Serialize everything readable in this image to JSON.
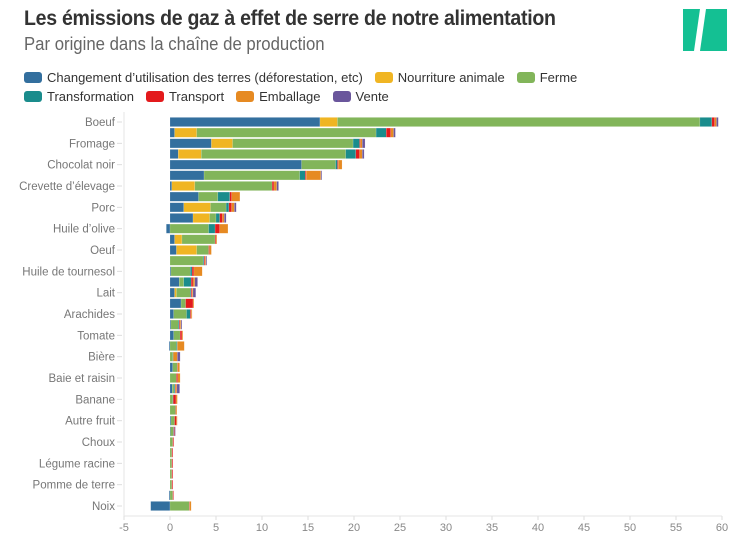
{
  "header": {
    "title": "Les émissions de gaz à effet de serre de notre alimentation",
    "subtitle": "Par origine dans la chaîne de production"
  },
  "logo": {
    "name": "brand-logo",
    "color": "#14c093"
  },
  "chart_data": {
    "type": "bar",
    "orientation": "horizontal",
    "stacked": true,
    "title": "Les émissions de gaz à effet de serre de notre alimentation",
    "subtitle": "Par origine dans la chaîne de production",
    "xlim": [
      -5,
      60
    ],
    "xticks": [
      -5,
      0,
      5,
      10,
      15,
      20,
      25,
      30,
      35,
      40,
      45,
      50,
      55,
      60
    ],
    "grid": false,
    "legend_position": "top",
    "series": [
      {
        "name": "Changement d’utilisation des terres (déforestation, etc)",
        "color": "#336f9e"
      },
      {
        "name": "Nourriture animale",
        "color": "#f0b523"
      },
      {
        "name": "Ferme",
        "color": "#82b55a"
      },
      {
        "name": "Transformation",
        "color": "#1a8c8c"
      },
      {
        "name": "Transport",
        "color": "#e31a1c"
      },
      {
        "name": "Emballage",
        "color": "#e68a22"
      },
      {
        "name": "Vente",
        "color": "#6a569c"
      }
    ],
    "rows": [
      {
        "label": "Boeuf",
        "values": [
          16.3,
          1.9,
          39.4,
          1.3,
          0.3,
          0.2,
          0.2
        ]
      },
      {
        "label": "",
        "values": [
          0.5,
          2.4,
          19.5,
          1.1,
          0.5,
          0.3,
          0.2
        ]
      },
      {
        "label": "Fromage",
        "values": [
          4.5,
          2.3,
          13.1,
          0.7,
          0.1,
          0.2,
          0.3
        ]
      },
      {
        "label": "",
        "values": [
          0.9,
          2.5,
          15.7,
          1.1,
          0.4,
          0.3,
          0.2
        ]
      },
      {
        "label": "Chocolat noir",
        "values": [
          14.3,
          0,
          3.7,
          0.2,
          0.1,
          0.4,
          0
        ]
      },
      {
        "label": "",
        "values": [
          3.7,
          0,
          10.4,
          0.6,
          0.1,
          1.6,
          0.1
        ]
      },
      {
        "label": "Crevette d’élevage",
        "values": [
          0.2,
          2.5,
          8.4,
          0,
          0.2,
          0.3,
          0.2
        ]
      },
      {
        "label": "",
        "values": [
          3.1,
          0,
          2.1,
          1.3,
          0.2,
          0.9,
          0
        ]
      },
      {
        "label": "Porc",
        "values": [
          1.5,
          2.9,
          1.7,
          0.3,
          0.3,
          0.3,
          0.2
        ]
      },
      {
        "label": "",
        "values": [
          2.5,
          1.8,
          0.7,
          0.4,
          0.3,
          0.2,
          0.2
        ]
      },
      {
        "label": "Huile d’olive",
        "values": [
          -0.4,
          0,
          4.2,
          0.7,
          0.5,
          0.9,
          0
        ]
      },
      {
        "label": "",
        "values": [
          0.5,
          0.8,
          3.6,
          0,
          0.1,
          0.1,
          0
        ]
      },
      {
        "label": "Oeuf",
        "values": [
          0.7,
          2.2,
          1.3,
          0,
          0.1,
          0.2,
          0
        ]
      },
      {
        "label": "",
        "values": [
          0,
          0,
          3.6,
          0.1,
          0.1,
          0.1,
          0.1
        ]
      },
      {
        "label": "Huile de tournesol",
        "values": [
          0.1,
          0,
          2.1,
          0.2,
          0.2,
          0.9,
          0
        ]
      },
      {
        "label": "",
        "values": [
          1.0,
          0,
          0.5,
          0.8,
          0.2,
          0.2,
          0.3
        ]
      },
      {
        "label": "Lait",
        "values": [
          0.5,
          0.2,
          1.5,
          0.1,
          0.1,
          0.1,
          0.3
        ]
      },
      {
        "label": "",
        "values": [
          1.2,
          0,
          0.5,
          0,
          0.8,
          0.1,
          0
        ]
      },
      {
        "label": "Arachides",
        "values": [
          0.4,
          0,
          1.4,
          0.4,
          0.1,
          0.1,
          0
        ]
      },
      {
        "label": "",
        "values": [
          0.1,
          0,
          0.8,
          0.1,
          0.1,
          0.1,
          0.1
        ]
      },
      {
        "label": "Tomate",
        "values": [
          0.4,
          0,
          0.7,
          0,
          0.2,
          0.1,
          0
        ]
      },
      {
        "label": "",
        "values": [
          -0.1,
          0,
          0.7,
          0.1,
          0,
          0.75,
          0
        ]
      },
      {
        "label": "Bière",
        "values": [
          0,
          0,
          0.3,
          0.05,
          0,
          0.45,
          0.3
        ]
      },
      {
        "label": "",
        "values": [
          0.3,
          0,
          0.5,
          0,
          0.05,
          0.2,
          0
        ]
      },
      {
        "label": "Baie et raisin",
        "values": [
          0,
          0,
          0.7,
          0,
          0.15,
          0.25,
          0
        ]
      },
      {
        "label": "",
        "values": [
          0.25,
          0,
          0.2,
          0.1,
          0.05,
          0.15,
          0.3
        ]
      },
      {
        "label": "Banane",
        "values": [
          0,
          0,
          0.3,
          0.05,
          0.3,
          0.15,
          0
        ]
      },
      {
        "label": "",
        "values": [
          0,
          0,
          0.6,
          0,
          0.05,
          0.1,
          0
        ]
      },
      {
        "label": "Autre fruit",
        "values": [
          0.1,
          0,
          0.4,
          0,
          0.2,
          0.05,
          0
        ]
      },
      {
        "label": "",
        "values": [
          0.05,
          0,
          0.3,
          0.05,
          0.1,
          0,
          0.05
        ]
      },
      {
        "label": "Choux",
        "values": [
          0,
          0,
          0.3,
          0,
          0.1,
          0,
          0
        ]
      },
      {
        "label": "",
        "values": [
          0,
          0,
          0.2,
          0,
          0.1,
          0,
          0
        ]
      },
      {
        "label": "Légume racine",
        "values": [
          0,
          0,
          0.2,
          0,
          0.1,
          0,
          0
        ]
      },
      {
        "label": "",
        "values": [
          0,
          0,
          0.2,
          0,
          0.1,
          0,
          0
        ]
      },
      {
        "label": "Pomme de terre",
        "values": [
          0,
          0,
          0.2,
          0,
          0.1,
          0,
          0
        ]
      },
      {
        "label": "",
        "values": [
          -0.1,
          0,
          0.3,
          0,
          0.05,
          0,
          0
        ]
      },
      {
        "label": "Noix",
        "values": [
          -2.1,
          0,
          2.1,
          0,
          0.05,
          0.15,
          0
        ]
      }
    ]
  }
}
